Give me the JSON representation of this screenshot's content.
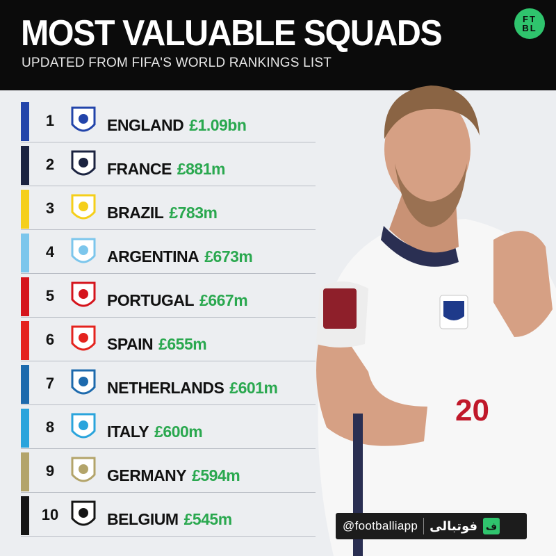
{
  "header": {
    "title": "MOST VALUABLE SQUADS",
    "subtitle": "UPDATED FROM FIFA'S WORLD RANKINGS LIST",
    "logo_text": "FT BL"
  },
  "rows": [
    {
      "rank": "1",
      "name": "ENGLAND",
      "value": "£1.09bn",
      "color": "#2244aa",
      "crest": "three-lions-crest-icon"
    },
    {
      "rank": "2",
      "name": "FRANCE",
      "value": "£881m",
      "color": "#1b2340",
      "crest": "rooster-crest-icon"
    },
    {
      "rank": "3",
      "name": "BRAZIL",
      "value": "£783m",
      "color": "#f5cf1a",
      "crest": "cbf-crest-icon"
    },
    {
      "rank": "4",
      "name": "ARGENTINA",
      "value": "£673m",
      "color": "#7cc6ec",
      "crest": "afa-crest-icon"
    },
    {
      "rank": "5",
      "name": "PORTUGAL",
      "value": "£667m",
      "color": "#d5141c",
      "crest": "fpf-crest-icon"
    },
    {
      "rank": "6",
      "name": "SPAIN",
      "value": "£655m",
      "color": "#e4231e",
      "crest": "rfef-crest-icon"
    },
    {
      "rank": "7",
      "name": "NETHERLANDS",
      "value": "£601m",
      "color": "#1d6aad",
      "crest": "knvb-lion-crest-icon"
    },
    {
      "rank": "8",
      "name": "ITALY",
      "value": "£600m",
      "color": "#2aa4dc",
      "crest": "figc-crest-icon"
    },
    {
      "rank": "9",
      "name": "GERMANY",
      "value": "£594m",
      "color": "#b3a46a",
      "crest": "dfb-eagle-crest-icon"
    },
    {
      "rank": "10",
      "name": "BELGIUM",
      "value": "£545m",
      "color": "#151515",
      "crest": "rbfa-crest-icon"
    }
  ],
  "handle": {
    "username": "@footballiapp",
    "arabic": "فوتبالی"
  }
}
